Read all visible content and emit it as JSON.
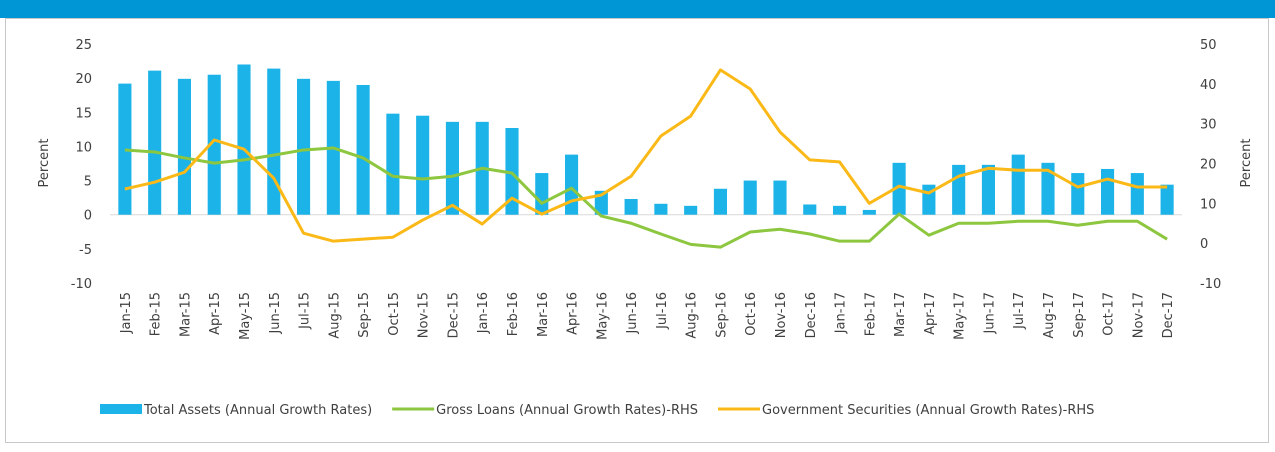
{
  "chart_data": {
    "type": "bar-line",
    "y_label": "Percent",
    "y2_label": "Percent",
    "categories": [
      "Jan-15",
      "Feb-15",
      "Mar-15",
      "Apr-15",
      "May-15",
      "Jun-15",
      "Jul-15",
      "Aug-15",
      "Sep-15",
      "Oct-15",
      "Nov-15",
      "Dec-15",
      "Jan-16",
      "Feb-16",
      "Mar-16",
      "Apr-16",
      "May-16",
      "Jun-16",
      "Jul-16",
      "Aug-16",
      "Sep-16",
      "Oct-16",
      "Nov-16",
      "Dec-16",
      "Jan-17",
      "Feb-17",
      "Mar-17",
      "Apr-17",
      "May-17",
      "Jun-17",
      "Jul-17",
      "Aug-17",
      "Sep-17",
      "Oct-17",
      "Nov-17",
      "Dec-17"
    ],
    "series": [
      {
        "name": "Total Assets (Annual Growth Rates)",
        "kind": "bar",
        "color": "#1cb3e8",
        "values": [
          19.2,
          21.1,
          19.9,
          20.5,
          22,
          21.4,
          19.9,
          19.6,
          19,
          14.8,
          14.5,
          13.6,
          13.6,
          12.7,
          6.1,
          8.8,
          3.5,
          2.3,
          1.6,
          1.3,
          3.8,
          5,
          5,
          1.5,
          1.3,
          0.7,
          7.6,
          4.4,
          7.3,
          7.3,
          8.8,
          7.6,
          6.1,
          6.7,
          6.1,
          4.4
        ]
      },
      {
        "name": "Gross Loans (Annual Growth Rates)-RHS",
        "kind": "line",
        "axis": "y2",
        "color": "#8dc63f",
        "values": [
          23.4,
          22.9,
          21.4,
          20.1,
          20.9,
          22.1,
          23.4,
          23.9,
          21.4,
          16.8,
          16.1,
          16.8,
          18.8,
          17.6,
          10,
          13.8,
          6.8,
          5,
          2.3,
          -0.3,
          -1,
          2.8,
          3.5,
          2.3,
          0.5,
          0.5,
          7.3,
          2,
          5,
          5,
          5.5,
          5.5,
          4.5,
          5.5,
          5.5,
          1
        ]
      },
      {
        "name": "Government Securities (Annual Growth Rates)-RHS",
        "kind": "line",
        "axis": "y2",
        "color": "#fbb917",
        "values": [
          13.6,
          15.3,
          17.8,
          25.9,
          23.6,
          16.3,
          2.5,
          0.5,
          1,
          1.5,
          5.8,
          9.5,
          4.8,
          11.3,
          7.3,
          10.6,
          12.1,
          16.8,
          26.9,
          31.9,
          43.5,
          38.7,
          27.9,
          20.9,
          20.4,
          10,
          14.3,
          12.6,
          16.8,
          18.8,
          18.3,
          18.3,
          14.1,
          16.1,
          14.1,
          14.1
        ]
      }
    ],
    "ylim": [
      -10,
      25
    ],
    "yticks": [
      -10,
      -5,
      0,
      5,
      10,
      15,
      20,
      25
    ],
    "y2lim": [
      -10,
      50
    ],
    "y2ticks": [
      -10,
      0,
      10,
      20,
      30,
      40,
      50
    ],
    "legend": "bottom"
  }
}
